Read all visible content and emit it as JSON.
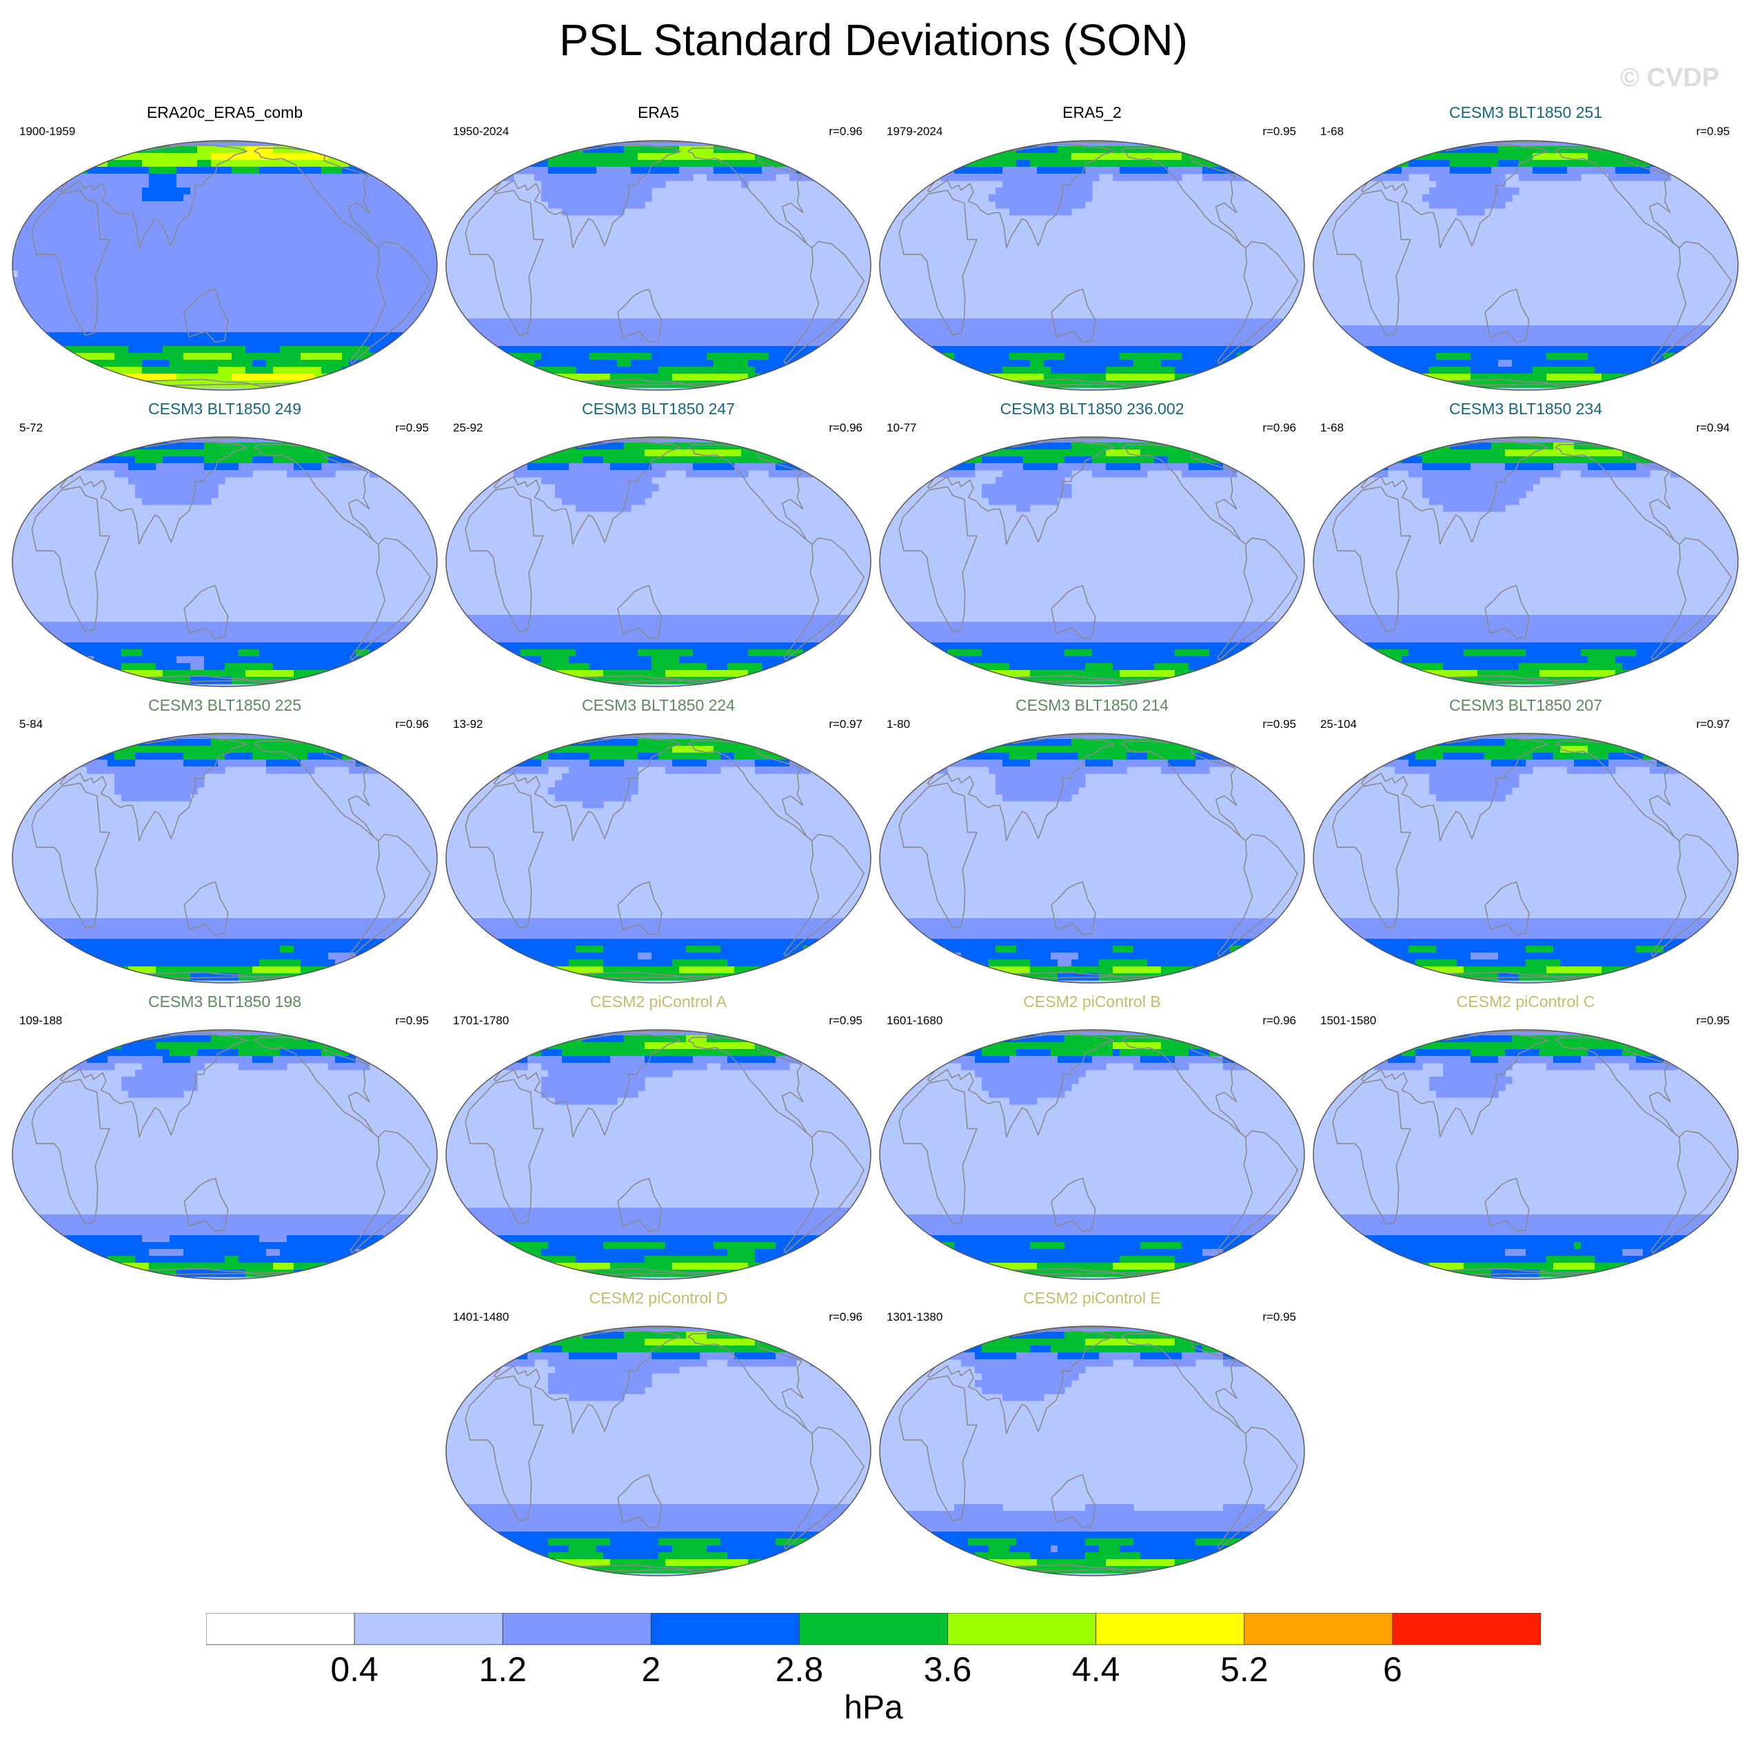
{
  "title": "PSL Standard Deviations (SON)",
  "credit": "© CVDP",
  "colors": {
    "levels": [
      "#ffffff",
      "#b5c7ff",
      "#7f97ff",
      "#0063ff",
      "#00c032",
      "#9bff00",
      "#ffff00",
      "#ffa000",
      "#ff1e00"
    ],
    "coast": "#8a8a8a",
    "title_black": "#000000",
    "title_cesm3_a": "#15657f",
    "title_cesm3_b": "#5b8a5b",
    "title_cesm2": "#c8b96a"
  },
  "chart_data": {
    "type": "map-panels",
    "title": "PSL Standard Deviations (SON)",
    "colorbar": {
      "boundaries": [
        "0.4",
        "1.2",
        "2",
        "2.8",
        "3.6",
        "4.4",
        "5.2",
        "6"
      ],
      "units": "hPa"
    },
    "panels": [
      {
        "title": "ERA20c_ERA5_comb",
        "years": "1900-1959",
        "r": "",
        "tc": "title_black",
        "seed": 1,
        "amp": 1.28
      },
      {
        "title": "ERA5",
        "years": "1950-2024",
        "r": "r=0.96",
        "tc": "title_black",
        "seed": 2,
        "amp": 1.05
      },
      {
        "title": "ERA5_2",
        "years": "1979-2024",
        "r": "r=0.95",
        "tc": "title_black",
        "seed": 3,
        "amp": 1.03
      },
      {
        "title": "CESM3 BLT1850 251",
        "years": "1-68",
        "r": "r=0.95",
        "tc": "title_cesm3_a",
        "seed": 4,
        "amp": 0.98
      },
      {
        "title": "CESM3 BLT1850 249",
        "years": "5-72",
        "r": "r=0.95",
        "tc": "title_cesm3_a",
        "seed": 5,
        "amp": 0.95
      },
      {
        "title": "CESM3 BLT1850 247",
        "years": "25-92",
        "r": "r=0.96",
        "tc": "title_cesm3_a",
        "seed": 6,
        "amp": 1.02
      },
      {
        "title": "CESM3 BLT1850 236.002",
        "years": "10-77",
        "r": "r=0.96",
        "tc": "title_cesm3_a",
        "seed": 7,
        "amp": 0.97
      },
      {
        "title": "CESM3 BLT1850 234",
        "years": "1-68",
        "r": "r=0.94",
        "tc": "title_cesm3_a",
        "seed": 8,
        "amp": 1.04
      },
      {
        "title": "CESM3 BLT1850 225",
        "years": "5-84",
        "r": "r=0.96",
        "tc": "title_cesm3_b",
        "seed": 9,
        "amp": 0.94
      },
      {
        "title": "CESM3 BLT1850 224",
        "years": "13-92",
        "r": "r=0.97",
        "tc": "title_cesm3_b",
        "seed": 10,
        "amp": 0.97
      },
      {
        "title": "CESM3 BLT1850 214",
        "years": "1-80",
        "r": "r=0.95",
        "tc": "title_cesm3_b",
        "seed": 11,
        "amp": 0.95
      },
      {
        "title": "CESM3 BLT1850 207",
        "years": "25-104",
        "r": "r=0.97",
        "tc": "title_cesm3_b",
        "seed": 12,
        "amp": 0.96
      },
      {
        "title": "CESM3 BLT1850 198",
        "years": "109-188",
        "r": "r=0.95",
        "tc": "title_cesm3_b",
        "seed": 13,
        "amp": 0.92
      },
      {
        "title": "CESM2 piControl A",
        "years": "1701-1780",
        "r": "r=0.95",
        "tc": "title_cesm2",
        "seed": 14,
        "amp": 1.04
      },
      {
        "title": "CESM2 piControl B",
        "years": "1601-1680",
        "r": "r=0.96",
        "tc": "title_cesm2",
        "seed": 15,
        "amp": 0.98
      },
      {
        "title": "CESM2 piControl C",
        "years": "1501-1580",
        "r": "r=0.95",
        "tc": "title_cesm2",
        "seed": 16,
        "amp": 0.94
      },
      {
        "title": "CESM2 piControl D",
        "years": "1401-1480",
        "r": "r=0.96",
        "tc": "title_cesm2",
        "seed": 17,
        "amp": 1.04
      },
      {
        "title": "CESM2 piControl E",
        "years": "1301-1380",
        "r": "r=0.95",
        "tc": "title_cesm2",
        "seed": 18,
        "amp": 1.0
      }
    ]
  }
}
